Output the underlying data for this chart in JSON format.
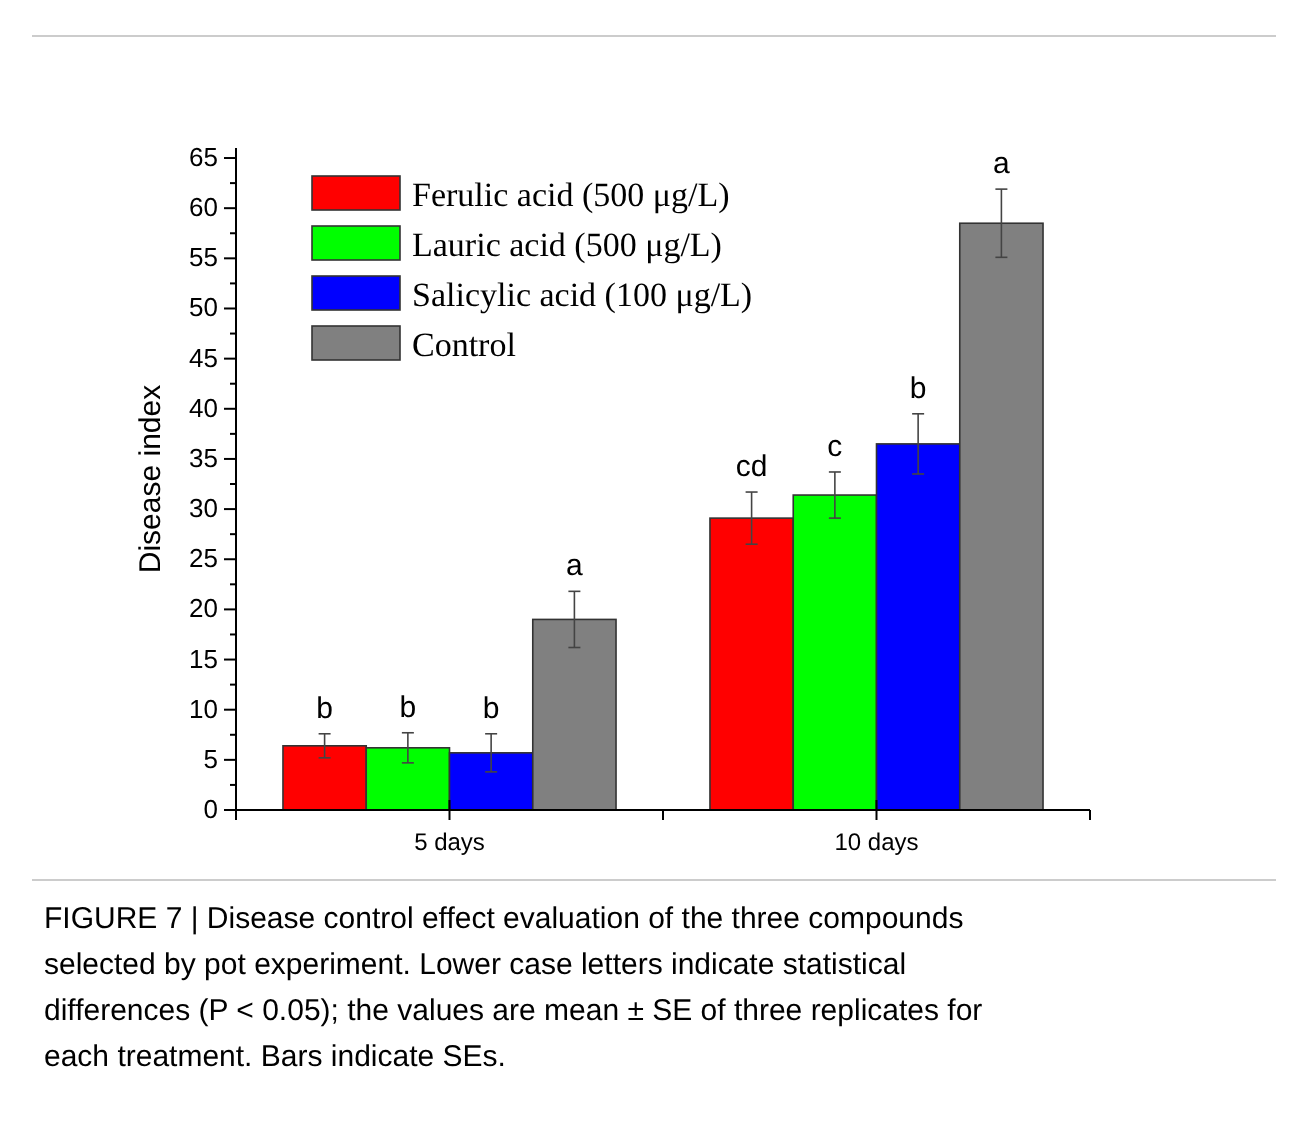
{
  "chart_data": {
    "type": "bar",
    "ylabel": "Disease index",
    "categories": [
      "5 days",
      "10 days"
    ],
    "series": [
      {
        "name": "Ferulic acid (500 μg/L)",
        "color": "#ff0000",
        "values": [
          6.4,
          29.1
        ],
        "errors": [
          1.2,
          2.6
        ],
        "value_labels": [
          "b",
          "cd"
        ]
      },
      {
        "name": "Lauric acid (500 μg/L)",
        "color": "#00ff00",
        "values": [
          6.2,
          31.4
        ],
        "errors": [
          1.5,
          2.3
        ],
        "value_labels": [
          "b",
          "c"
        ]
      },
      {
        "name": "Salicylic acid (100 μg/L)",
        "color": "#0000ff",
        "values": [
          5.7,
          36.5
        ],
        "errors": [
          1.9,
          3.0
        ],
        "value_labels": [
          "b",
          "b"
        ]
      },
      {
        "name": "Control",
        "color": "#808080",
        "values": [
          19.0,
          58.5
        ],
        "errors": [
          2.8,
          3.4
        ],
        "value_labels": [
          "a",
          "a"
        ]
      }
    ],
    "ylim": [
      0,
      66
    ],
    "yticks": [
      0,
      5,
      10,
      15,
      20,
      25,
      30,
      35,
      40,
      45,
      50,
      55,
      60,
      65
    ],
    "legend": "top left",
    "grid": false,
    "annotations": [
      "FIGURE 7 | Disease control effect evaluation of the three compounds selected by pot experiment. Lower case letters indicate statistical differences (P < 0.05); the values are mean ± SE of three replicates for each treatment. Bars indicate SEs."
    ]
  }
}
